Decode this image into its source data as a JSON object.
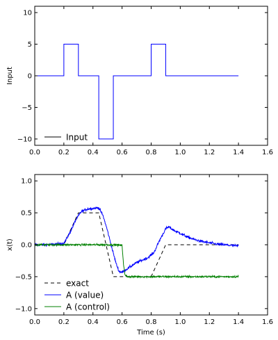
{
  "chart_data": [
    {
      "type": "line",
      "ylabel": "Input",
      "xlabel": "",
      "xlim": [
        0,
        1.6
      ],
      "ylim": [
        -11,
        11
      ],
      "xticks": [
        "0.0",
        "0.2",
        "0.4",
        "0.6",
        "0.8",
        "1.0",
        "1.2",
        "1.4",
        "1.6"
      ],
      "yticks": [
        "−10",
        "−5",
        "0",
        "5",
        "10"
      ],
      "ytick_values": [
        -10,
        -5,
        0,
        5,
        10
      ],
      "legend": "lower-left",
      "series": [
        {
          "name": "Input",
          "color": "#0000ff",
          "step": true,
          "x": [
            0.0,
            0.2,
            0.2,
            0.3,
            0.3,
            0.44,
            0.44,
            0.54,
            0.54,
            0.8,
            0.8,
            0.9,
            0.9,
            1.4
          ],
          "y": [
            0,
            0,
            5,
            5,
            0,
            0,
            -10,
            -10,
            0,
            0,
            5,
            5,
            0,
            0
          ]
        }
      ],
      "legend_entries": [
        {
          "label": "Input",
          "color": "#000000",
          "dash": "solid"
        }
      ]
    },
    {
      "type": "line",
      "ylabel": "x(t)",
      "xlabel": "Time (s)",
      "xlim": [
        0,
        1.6
      ],
      "ylim": [
        -1.1,
        1.1
      ],
      "xticks": [
        "0.0",
        "0.2",
        "0.4",
        "0.6",
        "0.8",
        "1.0",
        "1.2",
        "1.4",
        "1.6"
      ],
      "yticks": [
        "−1.0",
        "−0.5",
        "0.0",
        "0.5",
        "1.0"
      ],
      "ytick_values": [
        -1.0,
        -0.5,
        0.0,
        0.5,
        1.0
      ],
      "legend": "lower-left",
      "series": [
        {
          "name": "exact",
          "color": "#000000",
          "dash": "dashed",
          "x": [
            0.0,
            0.2,
            0.3,
            0.44,
            0.54,
            0.8,
            0.9,
            1.4
          ],
          "y": [
            0.0,
            0.0,
            0.5,
            0.5,
            -0.5,
            -0.5,
            0.0,
            0.0
          ]
        },
        {
          "name": "A (value)",
          "color": "#0000ff",
          "x": [
            0.0,
            0.1,
            0.2,
            0.24,
            0.28,
            0.32,
            0.36,
            0.4,
            0.44,
            0.47,
            0.5,
            0.53,
            0.56,
            0.58,
            0.6,
            0.62,
            0.66,
            0.7,
            0.74,
            0.78,
            0.82,
            0.86,
            0.9,
            0.92,
            0.96,
            1.0,
            1.05,
            1.1,
            1.15,
            1.2,
            1.25,
            1.3,
            1.35,
            1.4
          ],
          "y": [
            0.0,
            0.0,
            0.02,
            0.18,
            0.38,
            0.52,
            0.56,
            0.57,
            0.58,
            0.45,
            0.22,
            -0.05,
            -0.3,
            -0.42,
            -0.43,
            -0.4,
            -0.34,
            -0.28,
            -0.24,
            -0.2,
            -0.12,
            0.08,
            0.25,
            0.28,
            0.22,
            0.18,
            0.12,
            0.08,
            0.05,
            0.03,
            0.01,
            0.0,
            -0.01,
            -0.02
          ],
          "noise": 0.02
        },
        {
          "name": "A (control)",
          "color": "#008000",
          "x": [
            0.0,
            0.2,
            0.4,
            0.55,
            0.6,
            0.61,
            0.62,
            0.64,
            0.8,
            1.0,
            1.2,
            1.4
          ],
          "y": [
            0.0,
            0.0,
            0.0,
            0.0,
            -0.01,
            -0.3,
            -0.48,
            -0.5,
            -0.5,
            -0.5,
            -0.5,
            -0.5
          ],
          "noise": 0.015
        }
      ],
      "legend_entries": [
        {
          "label": "exact",
          "color": "#000000",
          "dash": "dashed"
        },
        {
          "label": "A (value)",
          "color": "#0000ff",
          "dash": "solid"
        },
        {
          "label": "A (control)",
          "color": "#008000",
          "dash": "solid"
        }
      ]
    }
  ]
}
